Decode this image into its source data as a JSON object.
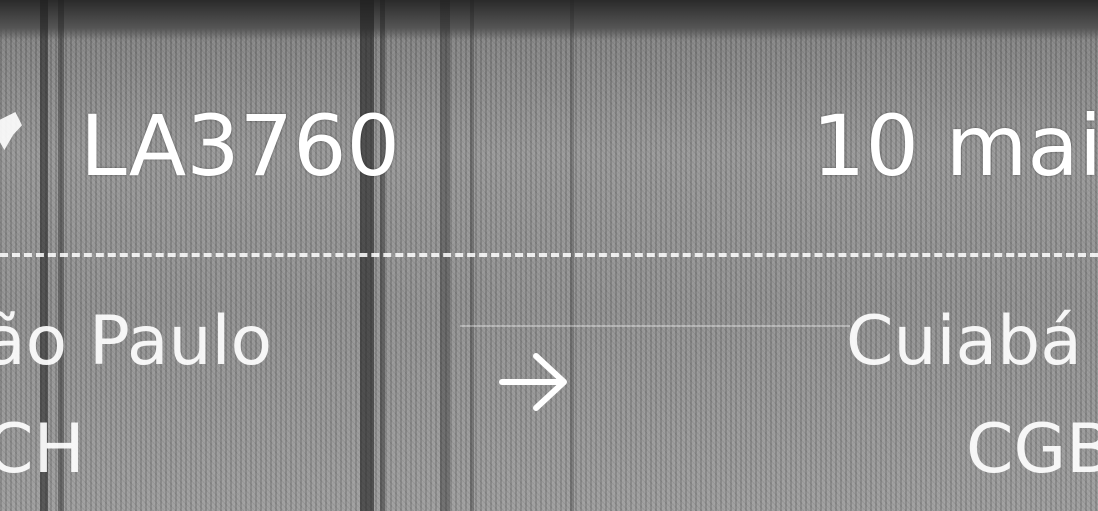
{
  "flight": {
    "number": "LA3760",
    "date": "10 mai"
  },
  "route": {
    "origin_city": "ão Paulo",
    "origin_code": "CH",
    "destination_city": "Cuiabá",
    "destination_code": "CGB",
    "arrow_icon": "arrow-right-icon"
  },
  "colors": {
    "text": "#ffffff",
    "background": "#8c8c8c"
  }
}
